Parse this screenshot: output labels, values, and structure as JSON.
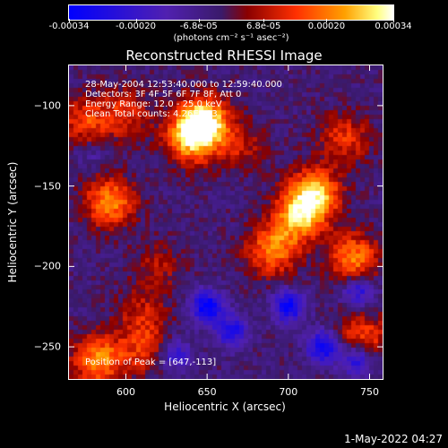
{
  "chart_data": {
    "type": "heatmap",
    "title": "Reconstructed RHESSI Image",
    "xlabel": "Heliocentric X (arcsec)",
    "ylabel": "Heliocentric Y (arcsec)",
    "xlim": [
      565,
      758
    ],
    "ylim": [
      -270,
      -75
    ],
    "xticks": [
      600,
      650,
      700,
      750
    ],
    "yticks": [
      -100,
      -150,
      -200,
      -250
    ],
    "colorbar": {
      "range": [
        -0.00034,
        0.00034
      ],
      "tick_values": [
        -0.00034,
        -0.0002,
        -6.8e-05,
        6.8e-05,
        0.0002,
        0.00034
      ],
      "tick_labels": [
        "-0.00034",
        "-0.00020",
        "-6.8e-05",
        "6.8e-05",
        "0.00020",
        "0.00034"
      ],
      "unit_label": "(photons cm⁻² s⁻¹ asec⁻²)",
      "colors": [
        "#0000ff",
        "#5020b0",
        "#3a1a6a",
        "#8a0000",
        "#ff3000",
        "#ffa000",
        "#ffff80",
        "#ffffff"
      ]
    },
    "annotations": [
      "28-May-2004 12:53:40.000 to 12:59:40.000",
      "Detectors: 3F 4F 5F 6F 7F 8F, Att 0",
      "Energy Range: 12.0 - 25.0 keV",
      "Clean     Total counts: 4.26E+03"
    ],
    "peak_label": "Position of Peak = [647,-113]",
    "sources": [
      {
        "x": 648,
        "y": -110,
        "peak": 0.00034
      },
      {
        "x": 640,
        "y": -120,
        "peak": 0.00028
      },
      {
        "x": 716,
        "y": -155,
        "peak": 0.00032
      },
      {
        "x": 706,
        "y": -170,
        "peak": 0.00026
      },
      {
        "x": 690,
        "y": -190,
        "peak": 0.00024
      },
      {
        "x": 740,
        "y": -195,
        "peak": 0.00025
      },
      {
        "x": 590,
        "y": -160,
        "peak": 0.00026
      },
      {
        "x": 575,
        "y": -110,
        "peak": 0.00018
      },
      {
        "x": 600,
        "y": -105,
        "peak": 0.00015
      },
      {
        "x": 583,
        "y": -258,
        "peak": 0.00026
      },
      {
        "x": 612,
        "y": -252,
        "peak": 0.00015
      },
      {
        "x": 745,
        "y": -245,
        "peak": 0.0002
      },
      {
        "x": 670,
        "y": -125,
        "peak": 0.00012
      },
      {
        "x": 735,
        "y": -120,
        "peak": 0.00016
      },
      {
        "x": 620,
        "y": -200,
        "peak": 0.0001
      },
      {
        "x": 610,
        "y": -230,
        "peak": 0.00012
      }
    ],
    "negative_regions": [
      {
        "x": 650,
        "y": -225,
        "value": -0.0003
      },
      {
        "x": 700,
        "y": -225,
        "value": -0.00028
      },
      {
        "x": 743,
        "y": -215,
        "value": -0.00022
      },
      {
        "x": 722,
        "y": -250,
        "value": -0.0003
      },
      {
        "x": 742,
        "y": -258,
        "value": -0.00028
      },
      {
        "x": 665,
        "y": -240,
        "value": -0.00024
      },
      {
        "x": 630,
        "y": -255,
        "value": -0.0002
      },
      {
        "x": 578,
        "y": -130,
        "value": -8e-05
      }
    ]
  },
  "footer": "1-May-2022 04:27"
}
